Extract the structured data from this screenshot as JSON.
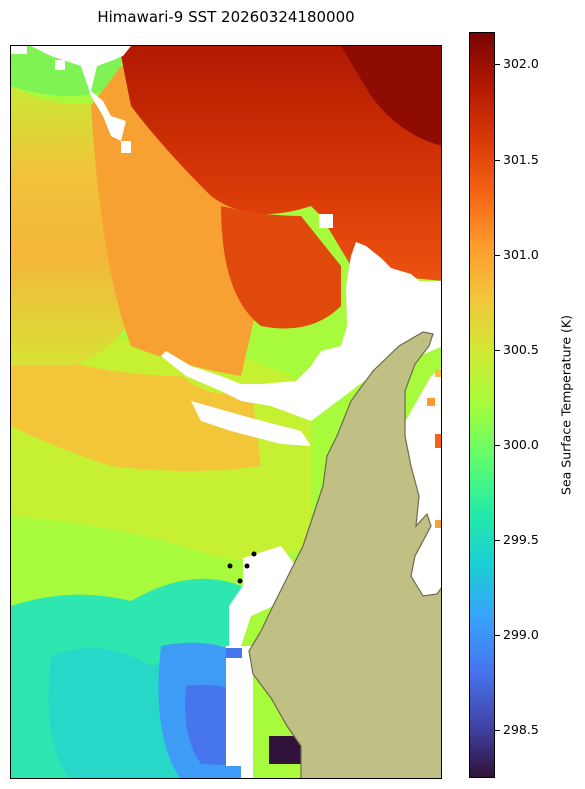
{
  "map": {
    "title": "Himawari-9 SST 20260324180000",
    "land_color": "#c0c084",
    "coast_color": "#6b6b4e",
    "station_color": "#000000"
  },
  "colorbar": {
    "label": "Sea Surface Temperature (K)",
    "vmin": 298.25,
    "vmax": 302.17,
    "colormap": "turbo",
    "stops": [
      "#30123b",
      "#4145ab",
      "#4675ed",
      "#39a2fc",
      "#1bcfd4",
      "#24eca6",
      "#61fc6c",
      "#a4fc3b",
      "#d1e834",
      "#f3c63a",
      "#fe9b2d",
      "#f36315",
      "#d93806",
      "#b11901",
      "#7a0402"
    ],
    "ticks": [
      {
        "value": 298.5,
        "label": "298.5"
      },
      {
        "value": 299.0,
        "label": "299.0"
      },
      {
        "value": 299.5,
        "label": "299.5"
      },
      {
        "value": 300.0,
        "label": "300.0"
      },
      {
        "value": 300.5,
        "label": "300.5"
      },
      {
        "value": 301.0,
        "label": "301.0"
      },
      {
        "value": 301.5,
        "label": "301.5"
      },
      {
        "value": 302.0,
        "label": "302.0"
      }
    ]
  }
}
